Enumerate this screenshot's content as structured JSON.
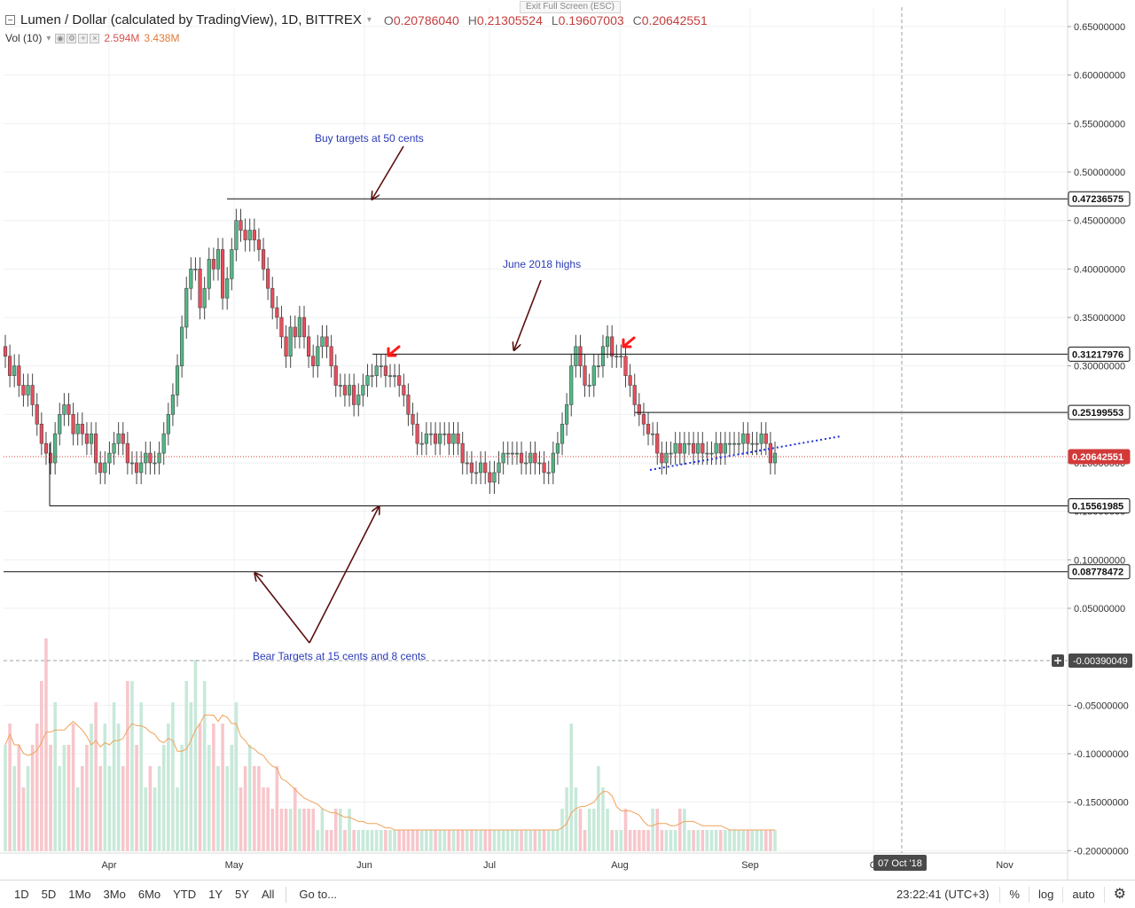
{
  "window": {
    "exit_fullscreen": "Exit Full Screen (ESC)"
  },
  "legend": {
    "symbol_title": "Lumen / Dollar (calculated by TradingView), 1D, BITTREX",
    "ohlc": [
      {
        "key": "O",
        "value": "0.20786040"
      },
      {
        "key": "H",
        "value": "0.21305524"
      },
      {
        "key": "L",
        "value": "0.19607003"
      },
      {
        "key": "C",
        "value": "0.20642551"
      }
    ],
    "volume_label": "Vol (10)",
    "volume_value": "2.594M",
    "volume_ma_value": "3.438M"
  },
  "colors": {
    "up": "#53b987",
    "down": "#eb4d5c",
    "up_volume": "#c7e9d9",
    "down_volume": "#f7c6cb",
    "volume_ma": "#f0a35a",
    "annotation_text": "#2a3bb7",
    "arrow": "#5a0f0f",
    "marker": "#ff1a1a",
    "trendline": "#1f2fe0",
    "close_line": "#d23a3a"
  },
  "icons": {
    "collapse": "collapse-icon",
    "settings": "gear-icon",
    "crosshair": "plus-icon"
  },
  "annotations": [
    {
      "id": "buy",
      "text": "Buy targets at 50 cents"
    },
    {
      "id": "june",
      "text": "June 2018 highs"
    },
    {
      "id": "bear",
      "text": "Bear Targets at 15 cents and 8 cents"
    }
  ],
  "level_labels": [
    "0.47236575",
    "0.31217976",
    "0.25199553",
    "0.20642551",
    "0.15561985",
    "0.08778472"
  ],
  "crosshair_label": "-0.00390049",
  "time_cursor_label": "07 Oct '18",
  "bottom_bar": {
    "ranges": [
      "1D",
      "5D",
      "1Mo",
      "3Mo",
      "6Mo",
      "YTD",
      "1Y",
      "5Y",
      "All"
    ],
    "goto": "Go to...",
    "clock": "23:22:41 (UTC+3)",
    "percent": "%",
    "log": "log",
    "auto": "auto"
  },
  "chart_data": {
    "type": "candlestick",
    "title": "Lumen / Dollar (calculated by TradingView), 1D, BITTREX",
    "yaxis": {
      "ticks": [
        "0.65000000",
        "0.60000000",
        "0.55000000",
        "0.50000000",
        "0.45000000",
        "0.40000000",
        "0.35000000",
        "0.30000000",
        "0.25000000",
        "0.20000000",
        "0.15000000",
        "0.10000000",
        "0.05000000",
        "-0.05000000",
        "-0.10000000",
        "-0.15000000",
        "-0.20000000"
      ],
      "range": [
        -0.2,
        0.65
      ]
    },
    "xaxis": {
      "ticks": [
        "Apr",
        "May",
        "Jun",
        "Jul",
        "Aug",
        "Sep",
        "O",
        "Nov"
      ]
    },
    "horizontal_levels": [
      0.47236575,
      0.31217976,
      0.25199553,
      0.15561985,
      0.08778472
    ],
    "last_close": 0.20642551,
    "grid": true,
    "legend_position": "top-left",
    "candles_close": [
      0.31,
      0.29,
      0.3,
      0.28,
      0.27,
      0.28,
      0.26,
      0.24,
      0.22,
      0.21,
      0.2,
      0.23,
      0.25,
      0.26,
      0.25,
      0.23,
      0.24,
      0.23,
      0.22,
      0.23,
      0.2,
      0.19,
      0.2,
      0.21,
      0.22,
      0.23,
      0.22,
      0.2,
      0.2,
      0.19,
      0.2,
      0.21,
      0.2,
      0.2,
      0.21,
      0.23,
      0.25,
      0.27,
      0.3,
      0.34,
      0.38,
      0.4,
      0.4,
      0.36,
      0.38,
      0.41,
      0.4,
      0.42,
      0.37,
      0.39,
      0.42,
      0.45,
      0.44,
      0.43,
      0.44,
      0.43,
      0.42,
      0.4,
      0.38,
      0.36,
      0.35,
      0.33,
      0.31,
      0.34,
      0.33,
      0.35,
      0.33,
      0.31,
      0.3,
      0.32,
      0.33,
      0.32,
      0.3,
      0.28,
      0.28,
      0.27,
      0.28,
      0.26,
      0.27,
      0.28,
      0.29,
      0.29,
      0.3,
      0.3,
      0.29,
      0.29,
      0.29,
      0.28,
      0.27,
      0.25,
      0.24,
      0.22,
      0.22,
      0.23,
      0.23,
      0.22,
      0.23,
      0.23,
      0.22,
      0.23,
      0.22,
      0.2,
      0.2,
      0.19,
      0.19,
      0.2,
      0.19,
      0.18,
      0.19,
      0.2,
      0.21,
      0.21,
      0.21,
      0.21,
      0.2,
      0.2,
      0.21,
      0.2,
      0.2,
      0.19,
      0.19,
      0.21,
      0.22,
      0.24,
      0.26,
      0.3,
      0.32,
      0.3,
      0.28,
      0.28,
      0.3,
      0.3,
      0.32,
      0.33,
      0.31,
      0.31,
      0.31,
      0.29,
      0.28,
      0.26,
      0.25,
      0.24,
      0.23,
      0.23,
      0.21,
      0.2,
      0.21,
      0.21,
      0.22,
      0.21,
      0.22,
      0.22,
      0.21,
      0.22,
      0.21,
      0.21,
      0.21,
      0.22,
      0.21,
      0.22,
      0.22,
      0.22,
      0.22,
      0.23,
      0.22,
      0.22,
      0.22,
      0.23,
      0.22,
      0.2,
      0.21
    ],
    "volume_scale": [
      0.5,
      0.6,
      0.4,
      0.5,
      0.3,
      0.4,
      0.5,
      0.6,
      0.8,
      1.0,
      0.5,
      0.7,
      0.4,
      0.5,
      0.5,
      0.6,
      0.3,
      0.4,
      0.5,
      0.6,
      0.7,
      0.4,
      0.6,
      0.4,
      0.7,
      0.6,
      0.4,
      0.8,
      0.8,
      0.5,
      0.7,
      0.3,
      0.4,
      0.3,
      0.4,
      0.5,
      0.6,
      0.7,
      0.3,
      0.5,
      0.8,
      0.7,
      0.9,
      0.6,
      0.8,
      0.5,
      0.6,
      0.4,
      0.6,
      0.4,
      0.5,
      0.7,
      0.3,
      0.4,
      0.5,
      0.4,
      0.4,
      0.3,
      0.3,
      0.2,
      0.4,
      0.2,
      0.2,
      0.2,
      0.3,
      0.2,
      0.2,
      0.2,
      0.2,
      0.1,
      0.2,
      0.1,
      0.1,
      0.2,
      0.2,
      0.1,
      0.2,
      0.1,
      0.1,
      0.1,
      0.1,
      0.1,
      0.1,
      0.1,
      0.1,
      0.1,
      0.1,
      0.1,
      0.1,
      0.1,
      0.1,
      0.1,
      0.1,
      0.1,
      0.1,
      0.1,
      0.1,
      0.1,
      0.1,
      0.1,
      0.1,
      0.1,
      0.1,
      0.1,
      0.1,
      0.1,
      0.1,
      0.1,
      0.1,
      0.1,
      0.1,
      0.1,
      0.1,
      0.1,
      0.1,
      0.1,
      0.1,
      0.1,
      0.1,
      0.1,
      0.1,
      0.1,
      0.1,
      0.2,
      0.3,
      0.6,
      0.3,
      0.2,
      0.1,
      0.2,
      0.2,
      0.4,
      0.3,
      0.2,
      0.1,
      0.1,
      0.1,
      0.2,
      0.1,
      0.1,
      0.1,
      0.1,
      0.1,
      0.2,
      0.2,
      0.1,
      0.1,
      0.1,
      0.1,
      0.2,
      0.2,
      0.1,
      0.1,
      0.1,
      0.1,
      0.1,
      0.1,
      0.1,
      0.1,
      0.1,
      0.1,
      0.1,
      0.1,
      0.1,
      0.1,
      0.1,
      0.1,
      0.1,
      0.1,
      0.1,
      0.1
    ]
  }
}
